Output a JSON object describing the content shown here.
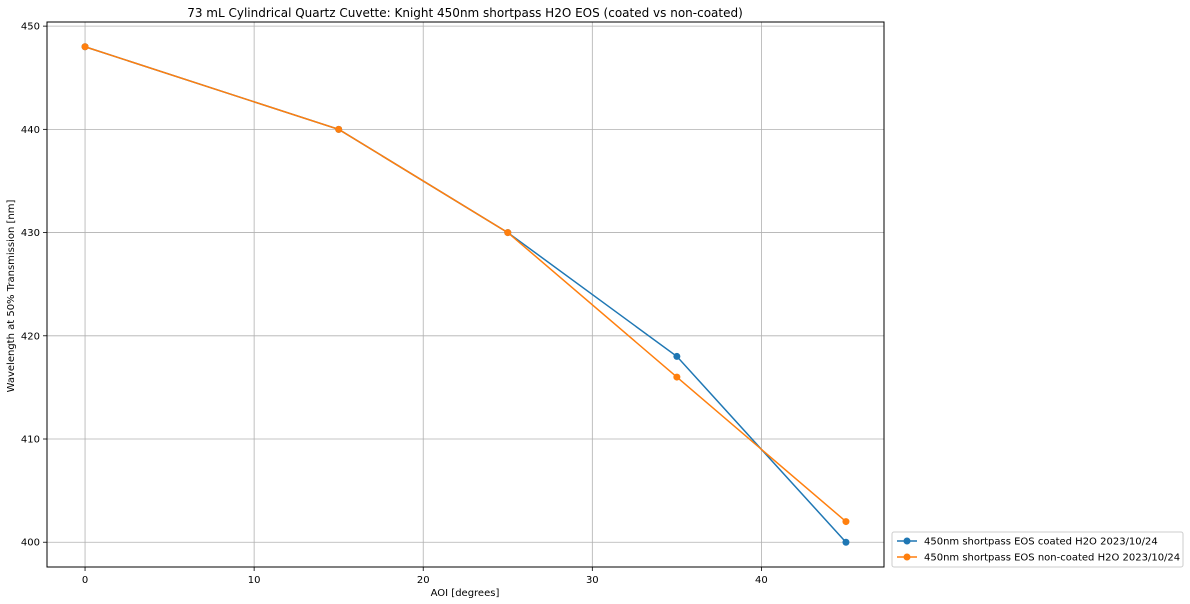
{
  "chart_data": {
    "type": "line",
    "title": "73 mL Cylindrical Quartz Cuvette: Knight 450nm shortpass H2O EOS (coated vs non-coated)",
    "xlabel": "AOI [degrees]",
    "ylabel": "Wavelength at 50% Transmission [nm]",
    "xlim": [
      -2.25,
      47.25
    ],
    "ylim": [
      397.6,
      450.4
    ],
    "xticks": [
      0,
      10,
      20,
      30,
      40
    ],
    "yticks": [
      400,
      410,
      420,
      430,
      440,
      450
    ],
    "grid": true,
    "legend_position": "outside-lower-right",
    "series": [
      {
        "name": "450nm shortpass EOS coated H2O 2023/10/24",
        "color": "#1f77b4",
        "x": [
          0,
          15,
          25,
          35,
          45
        ],
        "y": [
          448,
          440,
          430,
          418,
          400
        ]
      },
      {
        "name": "450nm shortpass EOS non-coated H2O 2023/10/24",
        "color": "#ff7f0e",
        "x": [
          0,
          15,
          25,
          35,
          45
        ],
        "y": [
          448,
          440,
          430,
          416,
          402
        ]
      }
    ]
  }
}
